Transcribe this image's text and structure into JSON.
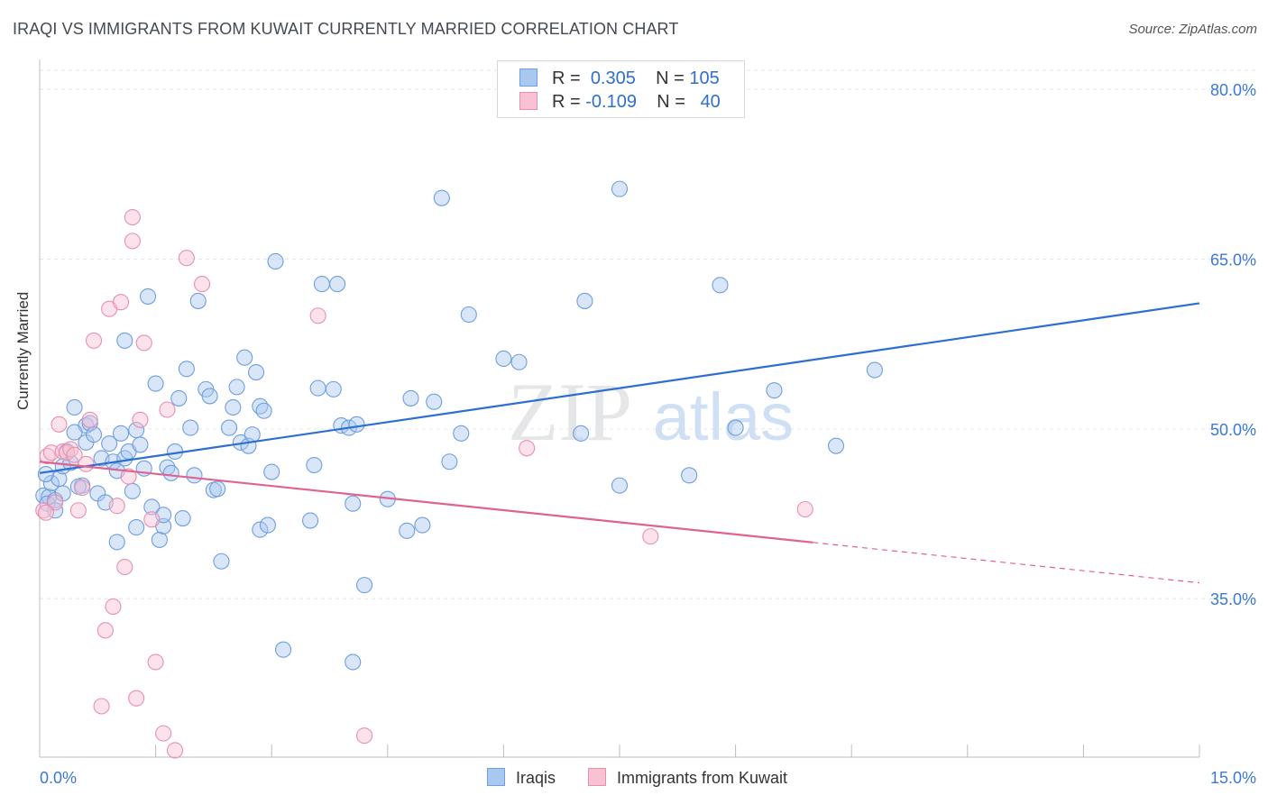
{
  "title": "IRAQI VS IMMIGRANTS FROM KUWAIT CURRENTLY MARRIED CORRELATION CHART",
  "source": "Source: ZipAtlas.com",
  "watermark": {
    "zip": "ZIP",
    "atlas": "atlas"
  },
  "legend_top": [
    {
      "r_label": "R =",
      "r_value": "0.305",
      "n_label": "N =",
      "n_value": "105",
      "color": "#a9c8f0",
      "border": "#6e9ee0"
    },
    {
      "r_label": "R =",
      "r_value": "-0.109",
      "n_label": "N =",
      "n_value": "40",
      "color": "#f8c2d2",
      "border": "#e88fae"
    }
  ],
  "chart_data": {
    "type": "scatter",
    "title": "IRAQI VS IMMIGRANTS FROM KUWAIT CURRENTLY MARRIED CORRELATION CHART",
    "xlabel": "",
    "ylabel": "Currently Married",
    "xlim": [
      0,
      15
    ],
    "ylim": [
      21,
      82
    ],
    "x_tick_labels": [
      "0.0%",
      "15.0%"
    ],
    "y_ticks": [
      35,
      50,
      65,
      80
    ],
    "y_tick_labels": [
      "35.0%",
      "50.0%",
      "65.0%",
      "80.0%"
    ],
    "x_minor_ticks": [
      0,
      1.5,
      3,
      4.5,
      6,
      7.5,
      9,
      10.5,
      12,
      13.5,
      15
    ],
    "series": [
      {
        "name": "Iraqis",
        "color": "#6e9ee0",
        "fill": "#a9c8f0",
        "line_color": "#2c6fd0",
        "trend": {
          "x0": 0,
          "y0": 46.1,
          "x1": 15,
          "y1": 61.1,
          "solid_until": 15
        },
        "points": [
          [
            0.05,
            44.1
          ],
          [
            0.12,
            44.0
          ],
          [
            0.15,
            45.2
          ],
          [
            0.1,
            43.4
          ],
          [
            0.2,
            43.7
          ],
          [
            0.25,
            45.6
          ],
          [
            0.3,
            46.7
          ],
          [
            0.35,
            48.0
          ],
          [
            0.4,
            47.0
          ],
          [
            0.45,
            51.9
          ],
          [
            0.55,
            45.0
          ],
          [
            0.6,
            48.8
          ],
          [
            0.6,
            50.3
          ],
          [
            0.65,
            50.5
          ],
          [
            0.7,
            49.5
          ],
          [
            0.75,
            44.3
          ],
          [
            0.8,
            47.4
          ],
          [
            0.85,
            43.5
          ],
          [
            0.9,
            48.7
          ],
          [
            0.95,
            47.1
          ],
          [
            1.0,
            46.3
          ],
          [
            1.0,
            40.0
          ],
          [
            1.05,
            49.6
          ],
          [
            1.1,
            47.4
          ],
          [
            1.1,
            57.8
          ],
          [
            1.15,
            48.0
          ],
          [
            1.2,
            44.5
          ],
          [
            1.25,
            49.9
          ],
          [
            1.3,
            48.6
          ],
          [
            1.35,
            46.5
          ],
          [
            1.4,
            61.7
          ],
          [
            1.45,
            43.1
          ],
          [
            1.5,
            54.0
          ],
          [
            1.55,
            40.2
          ],
          [
            1.6,
            41.4
          ],
          [
            1.6,
            42.4
          ],
          [
            1.65,
            46.6
          ],
          [
            1.7,
            46.1
          ],
          [
            1.75,
            48.0
          ],
          [
            1.8,
            52.7
          ],
          [
            1.85,
            42.1
          ],
          [
            1.9,
            55.3
          ],
          [
            1.95,
            50.1
          ],
          [
            2.0,
            45.9
          ],
          [
            2.05,
            61.3
          ],
          [
            2.15,
            53.5
          ],
          [
            2.2,
            52.9
          ],
          [
            2.25,
            44.6
          ],
          [
            2.3,
            44.7
          ],
          [
            2.35,
            38.3
          ],
          [
            2.45,
            50.1
          ],
          [
            2.5,
            51.9
          ],
          [
            2.55,
            53.7
          ],
          [
            2.6,
            48.8
          ],
          [
            2.65,
            56.3
          ],
          [
            2.7,
            48.5
          ],
          [
            2.75,
            49.5
          ],
          [
            2.8,
            55.0
          ],
          [
            2.85,
            41.1
          ],
          [
            2.85,
            52.0
          ],
          [
            2.9,
            51.6
          ],
          [
            2.95,
            41.5
          ],
          [
            3.0,
            46.2
          ],
          [
            3.05,
            64.8
          ],
          [
            3.15,
            30.5
          ],
          [
            3.5,
            41.9
          ],
          [
            3.55,
            46.8
          ],
          [
            3.6,
            53.6
          ],
          [
            3.65,
            62.8
          ],
          [
            3.8,
            53.5
          ],
          [
            3.85,
            62.8
          ],
          [
            3.9,
            50.3
          ],
          [
            4.0,
            50.1
          ],
          [
            4.05,
            43.4
          ],
          [
            4.1,
            50.4
          ],
          [
            4.2,
            36.2
          ],
          [
            4.05,
            29.4
          ],
          [
            4.5,
            43.8
          ],
          [
            4.75,
            41.0
          ],
          [
            4.8,
            52.7
          ],
          [
            4.95,
            41.5
          ],
          [
            5.1,
            52.4
          ],
          [
            5.2,
            70.4
          ],
          [
            5.3,
            47.1
          ],
          [
            5.45,
            49.6
          ],
          [
            5.55,
            60.1
          ],
          [
            6.0,
            56.2
          ],
          [
            6.2,
            55.9
          ],
          [
            7.0,
            49.6
          ],
          [
            7.05,
            61.3
          ],
          [
            7.5,
            71.2
          ],
          [
            7.5,
            45.0
          ],
          [
            8.4,
            45.9
          ],
          [
            8.8,
            62.7
          ],
          [
            9.0,
            50.1
          ],
          [
            9.5,
            53.4
          ],
          [
            10.3,
            48.5
          ],
          [
            10.8,
            55.2
          ],
          [
            0.08,
            46.0
          ],
          [
            0.5,
            44.9
          ],
          [
            0.45,
            49.7
          ],
          [
            0.3,
            44.3
          ],
          [
            0.2,
            42.8
          ],
          [
            1.25,
            41.3
          ]
        ]
      },
      {
        "name": "Immigrants from Kuwait",
        "color": "#e88fae",
        "fill": "#f8c2d2",
        "line_color": "#e0628f",
        "trend": {
          "x0": 0,
          "y0": 47.1,
          "x1": 15,
          "y1": 36.4,
          "solid_until": 10.0
        },
        "points": [
          [
            0.05,
            42.8
          ],
          [
            0.1,
            47.6
          ],
          [
            0.15,
            47.9
          ],
          [
            0.2,
            43.5
          ],
          [
            0.25,
            50.4
          ],
          [
            0.3,
            48.0
          ],
          [
            0.35,
            47.9
          ],
          [
            0.4,
            48.2
          ],
          [
            0.45,
            47.7
          ],
          [
            0.5,
            42.8
          ],
          [
            0.55,
            44.8
          ],
          [
            0.6,
            46.9
          ],
          [
            0.65,
            50.8
          ],
          [
            0.7,
            57.8
          ],
          [
            0.8,
            25.5
          ],
          [
            0.85,
            32.2
          ],
          [
            0.9,
            60.6
          ],
          [
            0.95,
            34.3
          ],
          [
            1.0,
            43.2
          ],
          [
            1.05,
            61.2
          ],
          [
            1.1,
            37.8
          ],
          [
            1.15,
            45.8
          ],
          [
            1.2,
            68.7
          ],
          [
            1.2,
            66.6
          ],
          [
            1.25,
            26.2
          ],
          [
            1.3,
            50.8
          ],
          [
            1.35,
            57.6
          ],
          [
            1.45,
            42.0
          ],
          [
            1.5,
            29.4
          ],
          [
            1.6,
            23.1
          ],
          [
            1.65,
            51.7
          ],
          [
            1.75,
            21.6
          ],
          [
            1.9,
            65.1
          ],
          [
            2.1,
            62.8
          ],
          [
            3.6,
            60.0
          ],
          [
            4.2,
            22.9
          ],
          [
            6.3,
            48.3
          ],
          [
            7.9,
            40.5
          ],
          [
            9.9,
            42.9
          ],
          [
            0.08,
            42.6
          ]
        ]
      }
    ]
  },
  "bottom_legend": [
    "Iraqis",
    "Immigrants from Kuwait"
  ]
}
